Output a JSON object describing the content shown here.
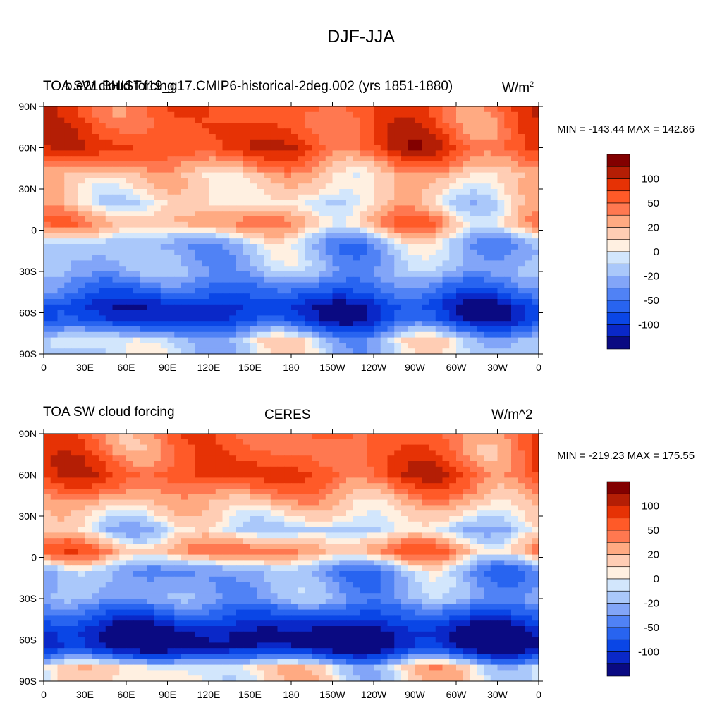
{
  "figure": {
    "title": "DJF-JJA"
  },
  "colorbar": {
    "colors": [
      "#0a0a82",
      "#0a28c8",
      "#0a46e6",
      "#2864f0",
      "#5082f5",
      "#82a5f8",
      "#aac8fa",
      "#d2e6fc",
      "#fff0e1",
      "#ffcdb4",
      "#ffaa82",
      "#ff7850",
      "#ff5a28",
      "#e63205",
      "#b41e05",
      "#820000"
    ],
    "tick_labels": [
      "-100",
      "-50",
      "-20",
      "0",
      "20",
      "50",
      "100"
    ]
  },
  "axes": {
    "x_ticks": [
      "0",
      "30E",
      "60E",
      "90E",
      "120E",
      "150E",
      "180",
      "150W",
      "120W",
      "90W",
      "60W",
      "30W",
      "0"
    ],
    "y_ticks": [
      "90N",
      "60N",
      "30N",
      "0",
      "30S",
      "60S",
      "90S"
    ]
  },
  "panels": [
    {
      "left_title": "TOA SW cloud forcing",
      "center_title": "b.e21.BHIST.f19_g17.CMIP6-historical-2deg.002 (yrs 1851-1880)",
      "units": "W/m",
      "units_sup": "2",
      "minmax": "MIN = -143.44 MAX = 142.86"
    },
    {
      "left_title": "TOA SW cloud forcing",
      "center_title": "CERES",
      "units": "W/m^2",
      "minmax": "MIN = -219.23 MAX = 175.55"
    }
  ],
  "chart_data": [
    {
      "type": "heatmap",
      "title": "DJF-JJA",
      "subtitle": "b.e21.BHIST.f19_g17.CMIP6-historical-2deg.002 (yrs 1851-1880)",
      "variable": "TOA SW cloud forcing",
      "units": "W/m^2",
      "min": -143.44,
      "max": 142.86,
      "xlim": [
        0,
        360
      ],
      "ylim": [
        -90,
        90
      ],
      "contour_levels": [
        -140,
        -120,
        -100,
        -80,
        -60,
        -50,
        -40,
        -30,
        -20,
        -10,
        0,
        10,
        20,
        30,
        40,
        50,
        60,
        80,
        100,
        120
      ],
      "zonal_mean_approx": {
        "lat": [
          80,
          60,
          40,
          20,
          5,
          -10,
          -30,
          -45,
          -55,
          -65,
          -80
        ],
        "value": [
          70,
          85,
          25,
          10,
          40,
          -20,
          -20,
          -60,
          -100,
          -90,
          -5
        ]
      }
    },
    {
      "type": "heatmap",
      "title": "DJF-JJA",
      "subtitle": "CERES",
      "variable": "TOA SW cloud forcing",
      "units": "W/m^2",
      "min": -219.23,
      "max": 175.55,
      "xlim": [
        0,
        360
      ],
      "ylim": [
        -90,
        90
      ],
      "contour_levels": [
        -140,
        -120,
        -100,
        -80,
        -60,
        -50,
        -40,
        -30,
        -20,
        -10,
        0,
        10,
        20,
        30,
        40,
        50,
        60,
        80,
        100,
        120
      ],
      "zonal_mean_approx": {
        "lat": [
          80,
          60,
          40,
          20,
          5,
          -10,
          -30,
          -45,
          -55,
          -65,
          -80
        ],
        "value": [
          60,
          80,
          30,
          -5,
          50,
          -30,
          -25,
          -80,
          -120,
          -120,
          10
        ]
      }
    }
  ]
}
